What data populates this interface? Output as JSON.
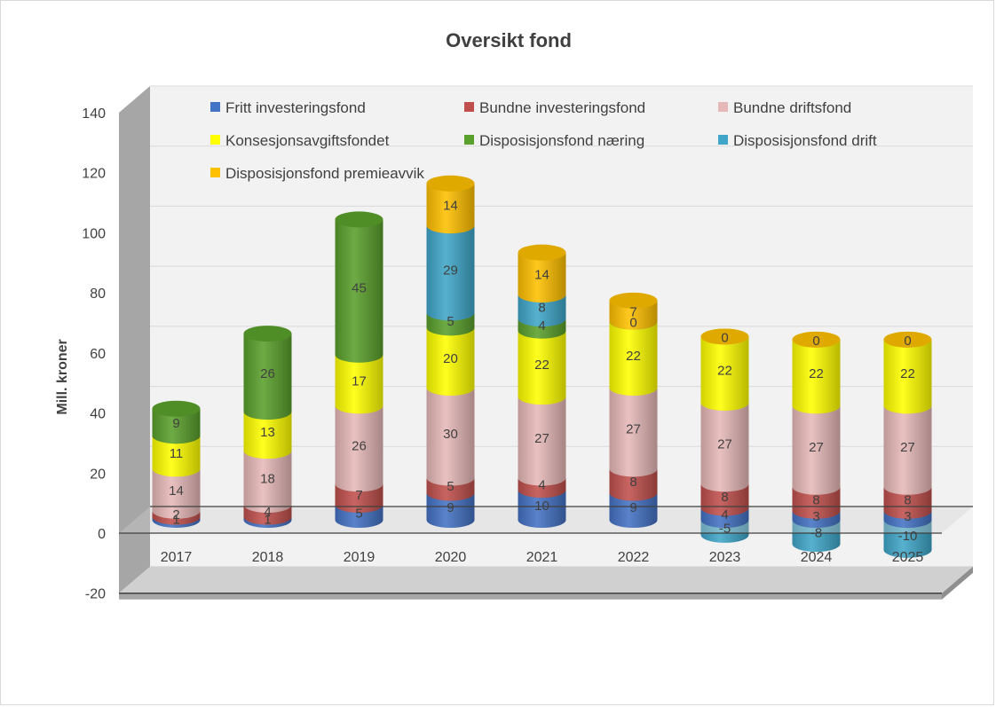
{
  "chart_data": {
    "type": "bar",
    "stacked": true,
    "style": "3d-cylinder",
    "title": "Oversikt fond",
    "xlabel": "",
    "ylabel": "Mill. kroner",
    "ylim": [
      -20,
      140
    ],
    "yticks": [
      -20,
      0,
      20,
      40,
      60,
      80,
      100,
      120,
      140
    ],
    "grid": true,
    "legend_position": "top-inside",
    "categories": [
      "2017",
      "2018",
      "2019",
      "2020",
      "2021",
      "2022",
      "2023",
      "2024",
      "2025"
    ],
    "series": [
      {
        "name": "Fritt investeringsfond",
        "color": "#4472c4",
        "values": [
          1,
          1,
          5,
          9,
          10,
          9,
          4,
          3,
          3
        ]
      },
      {
        "name": "Bundne investeringsfond",
        "color": "#c0504d",
        "values": [
          2,
          4,
          7,
          5,
          4,
          8,
          8,
          8,
          8
        ]
      },
      {
        "name": "Bundne driftsfond",
        "color": "#e6b9b8",
        "values": [
          14,
          18,
          26,
          30,
          27,
          27,
          27,
          27,
          27
        ]
      },
      {
        "name": "Konsesjonsavgiftsfondet",
        "color": "#ffff00",
        "values": [
          11,
          13,
          17,
          20,
          22,
          22,
          22,
          22,
          22
        ]
      },
      {
        "name": "Disposisjonsfond næring",
        "color": "#5aa02c",
        "values": [
          9,
          26,
          45,
          5,
          4,
          null,
          null,
          null,
          null
        ]
      },
      {
        "name": "Disposisjonsfond drift",
        "color": "#3fa6c9",
        "values": [
          null,
          null,
          null,
          29,
          8,
          0,
          -5,
          -8,
          -10
        ]
      },
      {
        "name": "Disposisjonsfond premieavvik",
        "color": "#ffc000",
        "values": [
          null,
          null,
          null,
          14,
          14,
          7,
          0,
          0,
          0
        ]
      }
    ]
  }
}
